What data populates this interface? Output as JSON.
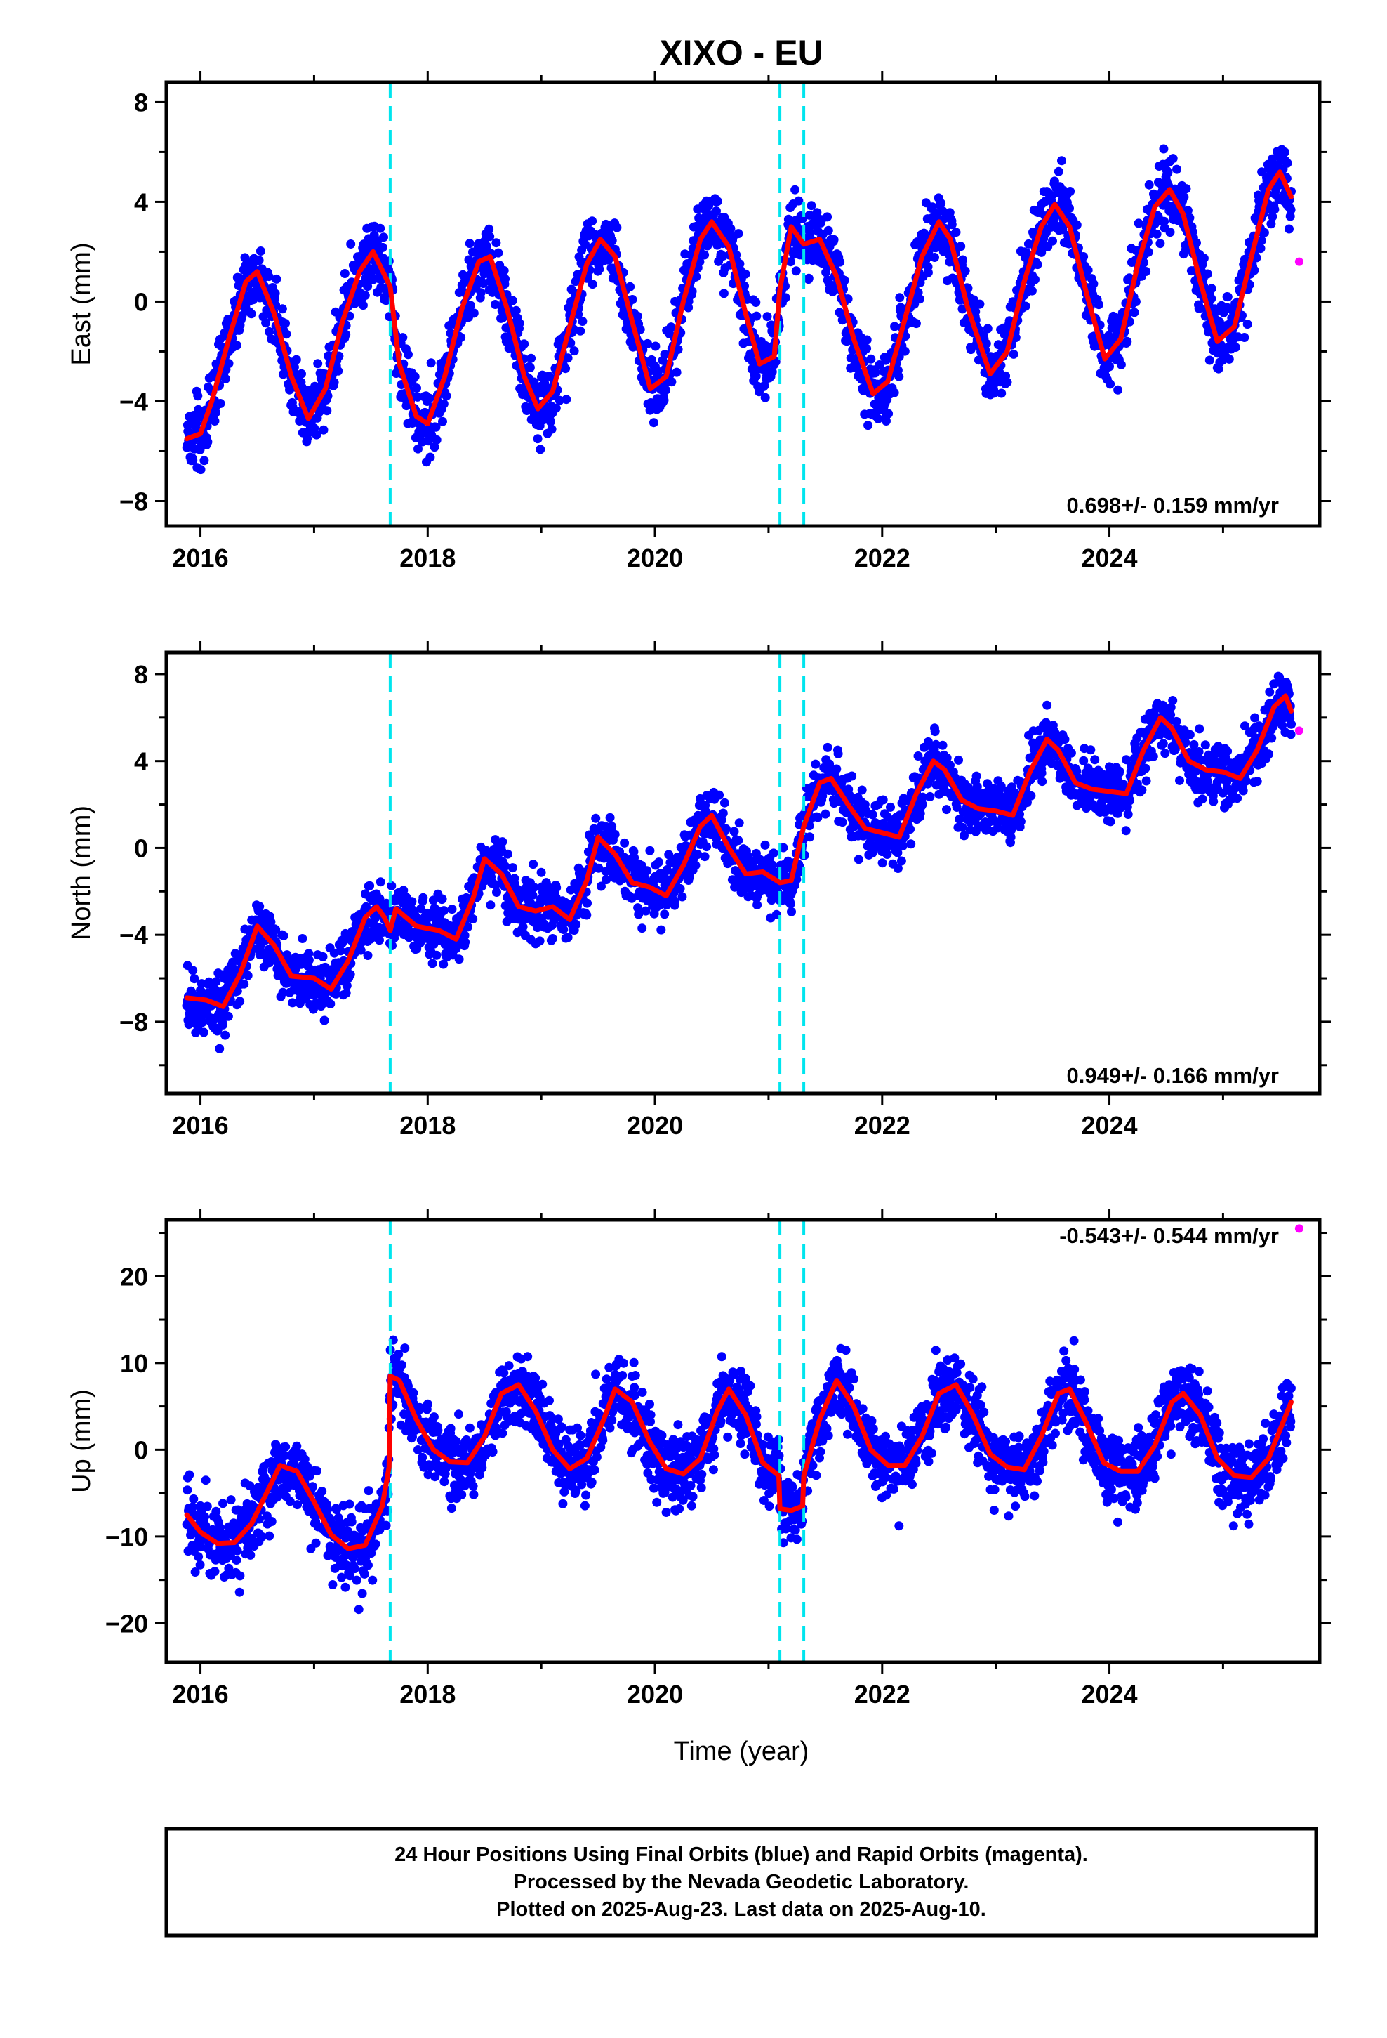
{
  "figure": {
    "title": "XIXO - EU",
    "xlabel": "Time (year)",
    "footer": [
      "24 Hour Positions Using Final Orbits (blue) and Rapid Orbits (magenta).",
      "Processed by the Nevada Geodetic Laboratory.",
      "Plotted on 2025-Aug-23. Last data on 2025-Aug-10."
    ]
  },
  "colors": {
    "final_orbits": "#0000ff",
    "rapid_orbits": "#ff00ff",
    "model": "#ff0000",
    "breaks": "#00e5ee",
    "frame": "#000000"
  },
  "chart_data": [
    {
      "type": "scatter",
      "ylabel": "East (mm)",
      "rate_text": "0.698+/- 0.159 mm/yr",
      "xlim": [
        2015.7,
        2025.85
      ],
      "ylim": [
        -9,
        8.8
      ],
      "xticks": [
        2016,
        2018,
        2020,
        2022,
        2024
      ],
      "xtick_labels": [
        "2016",
        "2018",
        "2020",
        "2022",
        "2024"
      ],
      "yticks": [
        -8,
        -4,
        0,
        4,
        8
      ],
      "ytick_labels": [
        "−8",
        "−4",
        "0",
        "4",
        "8"
      ],
      "breaks": [
        2017.67,
        2021.1,
        2021.31
      ],
      "model": {
        "x": [
          2015.88,
          2016.0,
          2016.1,
          2016.25,
          2016.4,
          2016.5,
          2016.65,
          2016.8,
          2016.95,
          2017.1,
          2017.25,
          2017.4,
          2017.52,
          2017.67,
          2017.75,
          2017.9,
          2018.0,
          2018.15,
          2018.3,
          2018.45,
          2018.55,
          2018.7,
          2018.85,
          2018.97,
          2019.1,
          2019.25,
          2019.4,
          2019.52,
          2019.65,
          2019.8,
          2019.96,
          2020.1,
          2020.25,
          2020.4,
          2020.5,
          2020.65,
          2020.8,
          2020.92,
          2021.05,
          2021.1,
          2021.2,
          2021.31,
          2021.45,
          2021.6,
          2021.75,
          2021.92,
          2022.05,
          2022.2,
          2022.35,
          2022.5,
          2022.6,
          2022.75,
          2022.95,
          2023.1,
          2023.25,
          2023.4,
          2023.52,
          2023.65,
          2023.8,
          2023.96,
          2024.1,
          2024.25,
          2024.4,
          2024.53,
          2024.65,
          2024.8,
          2024.95,
          2025.1,
          2025.25,
          2025.4,
          2025.5,
          2025.6
        ],
        "y": [
          -5.5,
          -5.3,
          -4.0,
          -1.5,
          0.8,
          1.2,
          -0.5,
          -3.0,
          -4.7,
          -3.5,
          -0.8,
          1.2,
          2.0,
          0.6,
          -2.5,
          -4.6,
          -4.9,
          -3.0,
          -0.3,
          1.6,
          1.8,
          -0.3,
          -3.0,
          -4.3,
          -3.6,
          -1.0,
          1.5,
          2.5,
          1.8,
          -0.8,
          -3.5,
          -3.0,
          0.0,
          2.5,
          3.2,
          2.2,
          -0.5,
          -2.5,
          -2.2,
          0.5,
          3.0,
          2.3,
          2.5,
          1.0,
          -1.5,
          -3.7,
          -3.2,
          -0.7,
          1.8,
          3.2,
          2.5,
          -0.2,
          -2.9,
          -2.0,
          0.8,
          3.0,
          3.9,
          3.0,
          0.3,
          -2.3,
          -1.5,
          1.5,
          3.8,
          4.5,
          3.5,
          0.8,
          -1.6,
          -1.0,
          1.8,
          4.5,
          5.2,
          4.2
        ]
      },
      "final_orbits": {
        "scatter_mm": 1.1,
        "last_epoch": 2025.6
      },
      "rapid_orbits": {
        "x": [
          2025.67
        ],
        "y": [
          1.6
        ]
      }
    },
    {
      "type": "scatter",
      "ylabel": "North (mm)",
      "rate_text": "0.949+/- 0.166 mm/yr",
      "xlim": [
        2015.7,
        2025.85
      ],
      "ylim": [
        -11.3,
        9.0
      ],
      "xticks": [
        2016,
        2018,
        2020,
        2022,
        2024
      ],
      "xtick_labels": [
        "2016",
        "2018",
        "2020",
        "2022",
        "2024"
      ],
      "yticks": [
        -8,
        -4,
        0,
        4,
        8
      ],
      "ytick_labels": [
        "−8",
        "−4",
        "0",
        "4",
        "8"
      ],
      "breaks": [
        2017.67,
        2021.1,
        2021.31
      ],
      "model": {
        "x": [
          2015.88,
          2016.05,
          2016.2,
          2016.35,
          2016.5,
          2016.65,
          2016.8,
          2017.0,
          2017.15,
          2017.3,
          2017.45,
          2017.55,
          2017.62,
          2017.67,
          2017.72,
          2017.9,
          2018.1,
          2018.25,
          2018.4,
          2018.5,
          2018.65,
          2018.8,
          2018.95,
          2019.1,
          2019.25,
          2019.4,
          2019.5,
          2019.65,
          2019.8,
          2019.95,
          2020.1,
          2020.25,
          2020.4,
          2020.5,
          2020.65,
          2020.8,
          2020.95,
          2021.1,
          2021.2,
          2021.31,
          2021.45,
          2021.55,
          2021.7,
          2021.85,
          2022.0,
          2022.15,
          2022.3,
          2022.45,
          2022.55,
          2022.7,
          2022.85,
          2023.0,
          2023.15,
          2023.3,
          2023.45,
          2023.55,
          2023.7,
          2023.85,
          2024.0,
          2024.15,
          2024.3,
          2024.45,
          2024.55,
          2024.7,
          2024.85,
          2025.0,
          2025.15,
          2025.3,
          2025.45,
          2025.55,
          2025.6
        ],
        "y": [
          -6.9,
          -7.0,
          -7.3,
          -5.8,
          -3.6,
          -4.5,
          -5.9,
          -6.0,
          -6.5,
          -5.2,
          -3.2,
          -2.7,
          -3.2,
          -3.8,
          -2.8,
          -3.6,
          -3.8,
          -4.2,
          -2.3,
          -0.5,
          -1.2,
          -2.7,
          -2.9,
          -2.7,
          -3.3,
          -1.5,
          0.5,
          -0.3,
          -1.6,
          -1.8,
          -2.2,
          -0.8,
          1.0,
          1.5,
          0.0,
          -1.2,
          -1.1,
          -1.6,
          -1.5,
          1.0,
          3.0,
          3.2,
          2.0,
          0.9,
          0.7,
          0.5,
          2.5,
          4.0,
          3.6,
          2.2,
          1.8,
          1.7,
          1.5,
          3.5,
          5.0,
          4.5,
          3.0,
          2.7,
          2.6,
          2.5,
          4.5,
          6.0,
          5.5,
          4.0,
          3.6,
          3.5,
          3.2,
          4.5,
          6.5,
          7.0,
          6.3
        ]
      },
      "final_orbits": {
        "scatter_mm": 1.1,
        "last_epoch": 2025.6
      },
      "rapid_orbits": {
        "x": [
          2025.67
        ],
        "y": [
          5.4
        ]
      }
    },
    {
      "type": "scatter",
      "ylabel": "Up (mm)",
      "rate_text": "-0.543+/- 0.544 mm/yr",
      "xlim": [
        2015.7,
        2025.85
      ],
      "ylim": [
        -24.5,
        26.5
      ],
      "xticks": [
        2016,
        2018,
        2020,
        2022,
        2024
      ],
      "xtick_labels": [
        "2016",
        "2018",
        "2020",
        "2022",
        "2024"
      ],
      "yticks": [
        -20,
        -10,
        0,
        10,
        20
      ],
      "ytick_labels": [
        "−20",
        "−10",
        "0",
        "10",
        "20"
      ],
      "breaks": [
        2017.67,
        2021.1,
        2021.31
      ],
      "model": {
        "x": [
          2015.88,
          2016.0,
          2016.15,
          2016.3,
          2016.45,
          2016.6,
          2016.7,
          2016.85,
          2017.0,
          2017.15,
          2017.3,
          2017.45,
          2017.6,
          2017.66,
          2017.67,
          2017.75,
          2017.9,
          2018.05,
          2018.2,
          2018.35,
          2018.5,
          2018.65,
          2018.8,
          2018.95,
          2019.1,
          2019.25,
          2019.4,
          2019.55,
          2019.65,
          2019.8,
          2019.95,
          2020.1,
          2020.25,
          2020.4,
          2020.55,
          2020.65,
          2020.8,
          2020.95,
          2021.09,
          2021.1,
          2021.2,
          2021.3,
          2021.31,
          2021.45,
          2021.6,
          2021.75,
          2021.9,
          2022.05,
          2022.2,
          2022.35,
          2022.5,
          2022.65,
          2022.8,
          2022.95,
          2023.1,
          2023.25,
          2023.4,
          2023.55,
          2023.65,
          2023.8,
          2023.95,
          2024.1,
          2024.25,
          2024.4,
          2024.55,
          2024.65,
          2024.8,
          2024.95,
          2025.1,
          2025.25,
          2025.4,
          2025.6
        ],
        "y": [
          -7.5,
          -9.5,
          -10.8,
          -10.7,
          -8.5,
          -4.5,
          -1.8,
          -2.5,
          -6.0,
          -9.8,
          -11.4,
          -11.0,
          -6.5,
          -2.0,
          8.5,
          8.0,
          3.5,
          0.0,
          -1.4,
          -1.5,
          1.5,
          6.5,
          7.5,
          4.5,
          0.0,
          -2.2,
          -1.0,
          3.5,
          7.0,
          5.5,
          1.0,
          -2.2,
          -2.8,
          -1.0,
          4.5,
          7.0,
          4.0,
          -1.5,
          -3.0,
          -6.8,
          -7.0,
          -6.5,
          -3.0,
          3.5,
          8.0,
          5.0,
          0.0,
          -1.8,
          -1.8,
          1.5,
          6.5,
          7.5,
          4.0,
          -0.5,
          -2.0,
          -2.3,
          1.5,
          6.5,
          7.0,
          3.0,
          -1.5,
          -2.5,
          -2.5,
          0.5,
          5.5,
          6.5,
          4.0,
          -1.0,
          -3.0,
          -3.2,
          -1.0,
          5.5
        ]
      },
      "final_orbits": {
        "scatter_mm": 3.3,
        "last_epoch": 2025.6
      },
      "rapid_orbits": {
        "x": [
          2025.67
        ],
        "y": [
          25.5
        ]
      }
    }
  ]
}
